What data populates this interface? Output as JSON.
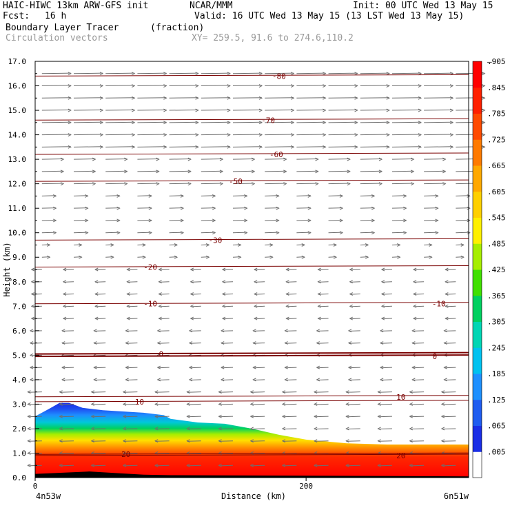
{
  "header": {
    "model": "HAIC-HIWC 13km ARW-GFS init",
    "org": "NCAR/MMM",
    "init": "Init: 00 UTC Wed 13 May 15",
    "fcst_label": "Fcst:",
    "fcst_value": "16 h",
    "valid": "Valid: 16 UTC Wed 13 May 15 (13 LST Wed 13 May 15)",
    "field": "Boundary Layer Tracer",
    "field_units": "(fraction)",
    "vectors": "Circulation vectors",
    "xy": "XY= 259.5, 91.6 to 274.6,110.2"
  },
  "colors": {
    "contour": "#7a0000",
    "vector": "#6e6e6e",
    "colorbar": [
      "#ffffff",
      "#1a2ee6",
      "#1f5cf0",
      "#1e90ff",
      "#00c2f0",
      "#00d6b4",
      "#00d060",
      "#40e000",
      "#a6ee00",
      "#fff000",
      "#ffd000",
      "#ffa800",
      "#ff7a00",
      "#ff4a00",
      "#ff2000",
      "#ff0000"
    ]
  },
  "chart_data": {
    "type": "heatmap",
    "title": "Boundary Layer Tracer",
    "units": "(fraction)",
    "ylabel": "Height (km)",
    "xlabel": "Distance (km)",
    "x_start_label": "4n53w",
    "x_end_label": "6n51w",
    "xlim": [
      0,
      320
    ],
    "ylim": [
      0,
      17
    ],
    "x_ticks": [
      "0",
      "200"
    ],
    "x_tick_values": [
      0,
      200
    ],
    "y_ticks": [
      "0.0",
      "1.0",
      "2.0",
      "3.0",
      "4.0",
      "5.0",
      "6.0",
      "7.0",
      "8.0",
      "9.0",
      "10.0",
      "11.0",
      "12.0",
      "13.0",
      "14.0",
      "15.0",
      "16.0",
      "17.0"
    ],
    "colorbar_labels": [
      ".005",
      ".065",
      ".125",
      ".185",
      ".245",
      ".305",
      ".365",
      ".425",
      ".485",
      ".545",
      ".605",
      ".665",
      ".725",
      ".785",
      ".845",
      ".905"
    ],
    "colorbar_top_label": "–",
    "isotherms": [
      {
        "label": "-80",
        "km": 16.4,
        "label_x": 180
      },
      {
        "label": "-70",
        "km": 14.6,
        "label_x": 172
      },
      {
        "label": "-60",
        "km": 13.2,
        "label_x": 178
      },
      {
        "label": "-50",
        "km": 12.1,
        "label_x": 148
      },
      {
        "label": "-30",
        "km": 9.7,
        "label_x": 133
      },
      {
        "label": "-20",
        "km": 8.6,
        "label_x": 85
      },
      {
        "label": "-10",
        "km": 7.1,
        "label_x": 85
      },
      {
        "label": "-10",
        "km": 7.1,
        "label_x": 298
      },
      {
        "label": "0",
        "km": 5.05,
        "label_x": 93
      },
      {
        "label": "0",
        "km": 4.95,
        "label_x": 295
      },
      {
        "label": "10",
        "km": 3.1,
        "label_x": 77
      },
      {
        "label": "10",
        "km": 3.3,
        "label_x": 270
      },
      {
        "label": "20",
        "km": 0.95,
        "label_x": 67
      },
      {
        "label": "20",
        "km": 0.9,
        "label_x": 270
      }
    ],
    "pbl_top_km": [
      [
        0,
        2.5
      ],
      [
        10,
        2.8
      ],
      [
        18,
        3.05
      ],
      [
        25,
        3.05
      ],
      [
        35,
        2.85
      ],
      [
        50,
        2.75
      ],
      [
        80,
        2.65
      ],
      [
        95,
        2.55
      ],
      [
        100,
        2.4
      ],
      [
        120,
        2.25
      ],
      [
        140,
        2.2
      ],
      [
        160,
        2.0
      ],
      [
        180,
        1.75
      ],
      [
        200,
        1.55
      ],
      [
        230,
        1.4
      ],
      [
        260,
        1.35
      ],
      [
        290,
        1.35
      ],
      [
        320,
        1.35
      ]
    ],
    "ground_km": [
      [
        0,
        0.15
      ],
      [
        40,
        0.25
      ],
      [
        80,
        0.12
      ],
      [
        100,
        0.1
      ],
      [
        320,
        0.05
      ]
    ]
  }
}
